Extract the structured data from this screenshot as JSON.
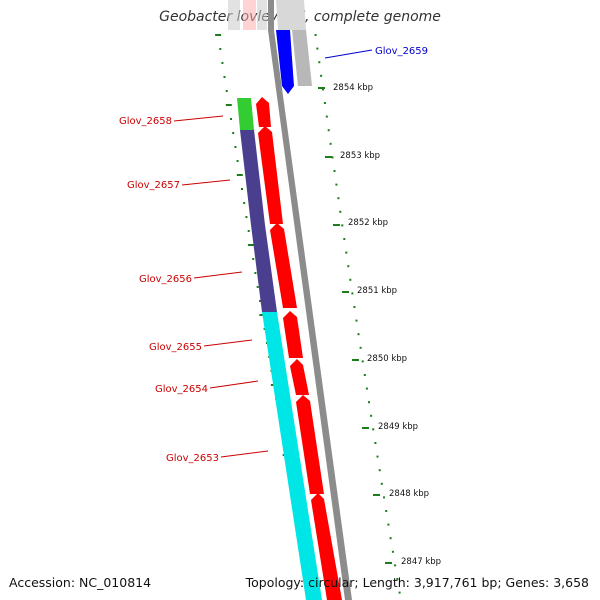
{
  "title": "Geobacter lovleyi SZ, complete genome",
  "footer": {
    "accession": "Accession: NC_010814",
    "topology": "Topology: circular; Length: 3,917,761 bp; Genes: 3,658"
  },
  "colors": {
    "reverse_label": "#cc0000",
    "forward_label": "#0000cc",
    "tick": "#1a7f1a",
    "forward_feature_grey": "#b8b8b8",
    "forward_feature_blue": "#0000ff",
    "reverse_red": "#ff0000",
    "green": "#33cc33",
    "purple": "#4a3f8f",
    "cyan": "#00e5e5",
    "backbone": "#8c8c8c"
  },
  "genes": [
    {
      "name": "Glov_2659",
      "strand": "forward"
    },
    {
      "name": "Glov_2658",
      "strand": "reverse"
    },
    {
      "name": "Glov_2657",
      "strand": "reverse"
    },
    {
      "name": "Glov_2656",
      "strand": "reverse"
    },
    {
      "name": "Glov_2655",
      "strand": "reverse"
    },
    {
      "name": "Glov_2654",
      "strand": "reverse"
    },
    {
      "name": "Glov_2653",
      "strand": "reverse"
    }
  ],
  "ticks": [
    "2854 kbp",
    "2853 kbp",
    "2852 kbp",
    "2851 kbp",
    "2850 kbp",
    "2849 kbp",
    "2848 kbp",
    "2847 kbp"
  ]
}
